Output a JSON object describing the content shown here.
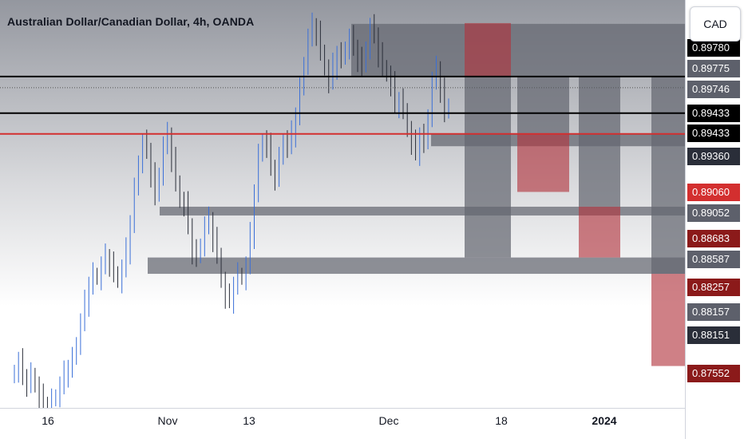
{
  "header": {
    "title": "Australian Dollar/Canadian Dollar, 4h, OANDA"
  },
  "currency_button": {
    "label": "CAD"
  },
  "colors": {
    "candle_up": "#3a6fd8",
    "candle_down": "#2a2e39",
    "zone_gray": "#787b86",
    "zone_red": "#b2323c",
    "red_line": "#d32f2f",
    "black_line": "#000000"
  },
  "price_labels": [
    {
      "text": "0.89780",
      "price": 0.8978,
      "bg": "#000000"
    },
    {
      "text": "0.89775",
      "price": 0.89775,
      "bg": "#5d606b"
    },
    {
      "text": "0.89746",
      "price": 0.89746,
      "bg": "#5d606b"
    },
    {
      "text": "0.89433",
      "price": 0.89433,
      "bg": "#000000"
    },
    {
      "text": "0.89433",
      "price": 0.89433,
      "bg": "#000000"
    },
    {
      "text": "0.89360",
      "price": 0.8936,
      "bg": "#2a2e39"
    },
    {
      "text": "0.89060",
      "price": 0.8906,
      "bg": "#d32f2f"
    },
    {
      "text": "0.89052",
      "price": 0.89052,
      "bg": "#5d606b"
    },
    {
      "text": "0.88683",
      "price": 0.88683,
      "bg": "#8b1a1a"
    },
    {
      "text": "0.88587",
      "price": 0.88587,
      "bg": "#5d606b"
    },
    {
      "text": "0.88257",
      "price": 0.88257,
      "bg": "#8b1a1a"
    },
    {
      "text": "0.88157",
      "price": 0.88157,
      "bg": "#5d606b"
    },
    {
      "text": "0.88151",
      "price": 0.88151,
      "bg": "#2a2e39"
    },
    {
      "text": "0.87552",
      "price": 0.87552,
      "bg": "#8b1a1a"
    }
  ],
  "time_labels": [
    {
      "text": "16",
      "bold": false
    },
    {
      "text": "Nov",
      "bold": false
    },
    {
      "text": "13",
      "bold": false
    },
    {
      "text": "Dec",
      "bold": false
    },
    {
      "text": "18",
      "bold": false
    },
    {
      "text": "2024",
      "bold": true
    }
  ],
  "chart_data": {
    "type": "candlestick",
    "title": "Australian Dollar/Canadian Dollar, 4h, OANDA",
    "y_unit": "CAD",
    "x_ticks": [
      "16",
      "Nov",
      "13",
      "Dec",
      "18",
      "2024"
    ],
    "ylim": [
      0.8728,
      0.8993
    ],
    "horizontal_lines": [
      {
        "price": 0.89433,
        "color": "#000000",
        "style": "solid"
      },
      {
        "price": 0.89195,
        "color": "#000000",
        "style": "solid"
      },
      {
        "price": 0.8936,
        "color": "#555555",
        "style": "dotted"
      },
      {
        "price": 0.8906,
        "color": "#d32f2f",
        "style": "solid"
      }
    ],
    "zones": [
      {
        "kind": "supply",
        "top": 0.89775,
        "bottom": 0.89433,
        "color": "gray"
      },
      {
        "kind": "demand",
        "top": 0.8906,
        "bottom": 0.8898,
        "color": "gray"
      },
      {
        "kind": "level",
        "top": 0.88587,
        "bottom": 0.8853,
        "color": "gray"
      },
      {
        "kind": "demand",
        "top": 0.88257,
        "bottom": 0.88151,
        "color": "gray"
      },
      {
        "kind": "projection",
        "top": 0.8978,
        "bottom": 0.89433,
        "color": "red"
      },
      {
        "kind": "projection",
        "top": 0.89433,
        "bottom": 0.88257,
        "color": "gray"
      },
      {
        "kind": "projection",
        "top": 0.89433,
        "bottom": 0.8906,
        "color": "gray"
      },
      {
        "kind": "projection",
        "top": 0.8906,
        "bottom": 0.88683,
        "color": "red"
      },
      {
        "kind": "projection",
        "top": 0.89433,
        "bottom": 0.88587,
        "color": "gray"
      },
      {
        "kind": "projection",
        "top": 0.88587,
        "bottom": 0.88257,
        "color": "red"
      },
      {
        "kind": "projection",
        "top": 0.89433,
        "bottom": 0.88151,
        "color": "gray"
      },
      {
        "kind": "projection",
        "top": 0.88151,
        "bottom": 0.87552,
        "color": "red"
      }
    ],
    "series": [
      {
        "name": "",
        "close": [
          0.8752,
          0.8758,
          0.8748,
          0.8744,
          0.875,
          0.8742,
          0.8735,
          0.873,
          0.8728,
          0.8733,
          0.8736,
          0.8742,
          0.875,
          0.8754,
          0.876,
          0.877,
          0.8783,
          0.8796,
          0.8808,
          0.8815,
          0.8812,
          0.882,
          0.8826,
          0.8822,
          0.8816,
          0.881,
          0.8818,
          0.883,
          0.8848,
          0.887,
          0.8888,
          0.89,
          0.8895,
          0.888,
          0.8866,
          0.888,
          0.8898,
          0.8905,
          0.889,
          0.8875,
          0.8862,
          0.886,
          0.8846,
          0.883,
          0.8826,
          0.8834,
          0.8846,
          0.885,
          0.8838,
          0.8828,
          0.881,
          0.88,
          0.8798,
          0.8808,
          0.8815,
          0.8812,
          0.882,
          0.884,
          0.8868,
          0.8892,
          0.8902,
          0.8898,
          0.8884,
          0.8878,
          0.889,
          0.8902,
          0.8898,
          0.8906,
          0.8918,
          0.8935,
          0.8952,
          0.8968,
          0.8976,
          0.8972,
          0.896,
          0.8948,
          0.894,
          0.895,
          0.8958,
          0.8955,
          0.8962,
          0.8968,
          0.8962,
          0.8955,
          0.895,
          0.8962,
          0.8975,
          0.897,
          0.8958,
          0.895,
          0.8944,
          0.8938,
          0.8925,
          0.8928,
          0.8922,
          0.8908,
          0.89,
          0.8894,
          0.8905,
          0.89,
          0.8918,
          0.894,
          0.8948,
          0.8935,
          0.892,
          0.8925
        ]
      }
    ]
  }
}
